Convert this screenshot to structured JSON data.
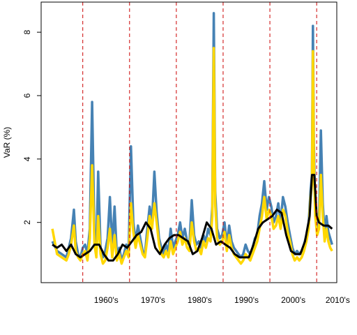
{
  "chart_data": {
    "type": "line",
    "ylabel": "VaR (%)",
    "xlabel": "",
    "title": "",
    "xlim": [
      1950.6,
      2013.8
    ],
    "ylim": [
      0.1,
      8.95
    ],
    "y_ticks": [
      2,
      4,
      6,
      8
    ],
    "y_tick_labels": [
      "2",
      "4",
      "6",
      "8"
    ],
    "decade_labels": [
      {
        "label": "1960's",
        "x": 1964.5
      },
      {
        "label": "1970's",
        "x": 1974.5
      },
      {
        "label": "1980's",
        "x": 1984.5
      },
      {
        "label": "1990's",
        "x": 1994.5
      },
      {
        "label": "2000's",
        "x": 2004.5
      },
      {
        "label": "2010's",
        "x": 2014.0
      }
    ],
    "vlines": [
      1959.5,
      1969.5,
      1979.5,
      1989.5,
      1999.5,
      2009.5
    ],
    "vline_color": "#cc0000",
    "grid": false,
    "series": [
      {
        "color": "#4682b4",
        "x": [
          1953.0,
          1954.0,
          1955.0,
          1956.0,
          1956.5,
          1957.0,
          1957.6,
          1958.0,
          1958.5,
          1959.0,
          1959.5,
          1960.0,
          1960.5,
          1961.0,
          1961.5,
          1962.0,
          1962.4,
          1962.8,
          1963.3,
          1963.8,
          1964.3,
          1964.8,
          1965.3,
          1965.8,
          1966.3,
          1966.8,
          1967.3,
          1967.8,
          1968.3,
          1968.8,
          1969.3,
          1969.8,
          1970.3,
          1970.8,
          1971.3,
          1971.8,
          1972.3,
          1972.8,
          1973.3,
          1973.8,
          1974.3,
          1974.8,
          1975.3,
          1975.8,
          1976.3,
          1976.8,
          1977.3,
          1977.8,
          1978.3,
          1978.8,
          1979.3,
          1979.8,
          1980.3,
          1980.8,
          1981.3,
          1981.8,
          1982.3,
          1982.8,
          1983.3,
          1983.8,
          1984.3,
          1984.8,
          1985.3,
          1985.8,
          1986.3,
          1986.8,
          1987.2,
          1987.5,
          1987.8,
          1988.2,
          1988.8,
          1989.3,
          1989.8,
          1990.3,
          1990.8,
          1991.3,
          1991.8,
          1992.3,
          1992.8,
          1993.3,
          1993.8,
          1994.3,
          1994.8,
          1995.3,
          1995.8,
          1996.3,
          1996.8,
          1997.3,
          1997.8,
          1998.3,
          1998.8,
          1999.3,
          1999.8,
          2000.3,
          2000.8,
          2001.3,
          2001.8,
          2002.3,
          2002.8,
          2003.3,
          2003.8,
          2004.3,
          2004.8,
          2005.3,
          2005.8,
          2006.3,
          2006.8,
          2007.3,
          2007.8,
          2008.2,
          2008.5,
          2008.7,
          2008.9,
          2009.2,
          2009.6,
          2010.0,
          2010.4,
          2010.8,
          2011.2,
          2011.6,
          2012.0,
          2012.4,
          2012.8
        ],
        "y": [
          1.4,
          1.1,
          1.0,
          0.9,
          1.2,
          1.5,
          2.4,
          1.4,
          1.0,
          0.9,
          1.2,
          1.3,
          1.0,
          1.8,
          5.8,
          1.6,
          1.1,
          3.6,
          1.2,
          0.9,
          1.1,
          1.5,
          2.8,
          1.2,
          2.5,
          0.9,
          1.2,
          0.8,
          1.0,
          1.3,
          1.1,
          4.4,
          2.0,
          1.4,
          1.9,
          1.5,
          1.1,
          1.0,
          1.8,
          2.5,
          2.0,
          3.6,
          2.3,
          1.5,
          1.2,
          1.0,
          1.3,
          1.1,
          1.8,
          1.2,
          1.4,
          1.6,
          2.0,
          1.5,
          1.8,
          1.4,
          1.3,
          2.7,
          1.6,
          1.3,
          1.4,
          1.2,
          1.6,
          1.4,
          1.8,
          1.6,
          2.5,
          8.6,
          3.0,
          1.8,
          1.5,
          1.6,
          2.0,
          1.3,
          1.9,
          1.4,
          1.2,
          1.1,
          1.0,
          0.9,
          1.0,
          1.3,
          1.1,
          1.0,
          1.2,
          1.5,
          1.6,
          2.2,
          2.6,
          3.3,
          2.4,
          2.8,
          2.5,
          2.0,
          2.2,
          2.6,
          2.0,
          2.8,
          2.5,
          2.0,
          1.6,
          1.2,
          1.0,
          1.1,
          1.0,
          1.1,
          1.3,
          1.6,
          2.0,
          3.0,
          3.5,
          8.2,
          4.5,
          2.5,
          1.8,
          2.0,
          4.9,
          2.6,
          1.6,
          2.2,
          1.7,
          1.5,
          1.3
        ]
      },
      {
        "color": "#ffd700",
        "x": [
          1953.0,
          1954.0,
          1955.0,
          1956.0,
          1956.5,
          1957.0,
          1957.6,
          1958.0,
          1958.5,
          1959.0,
          1959.5,
          1960.0,
          1960.5,
          1961.0,
          1961.5,
          1962.0,
          1962.4,
          1962.8,
          1963.3,
          1963.8,
          1964.3,
          1964.8,
          1965.3,
          1965.8,
          1966.3,
          1966.8,
          1967.3,
          1967.8,
          1968.3,
          1968.8,
          1969.3,
          1969.8,
          1970.3,
          1970.8,
          1971.3,
          1971.8,
          1972.3,
          1972.8,
          1973.3,
          1973.8,
          1974.3,
          1974.8,
          1975.3,
          1975.8,
          1976.3,
          1976.8,
          1977.3,
          1977.8,
          1978.3,
          1978.8,
          1979.3,
          1979.8,
          1980.3,
          1980.8,
          1981.3,
          1981.8,
          1982.3,
          1982.8,
          1983.3,
          1983.8,
          1984.3,
          1984.8,
          1985.3,
          1985.8,
          1986.3,
          1986.8,
          1987.2,
          1987.5,
          1987.8,
          1988.2,
          1988.8,
          1989.3,
          1989.8,
          1990.3,
          1990.8,
          1991.3,
          1991.8,
          1992.3,
          1992.8,
          1993.3,
          1993.8,
          1994.3,
          1994.8,
          1995.3,
          1995.8,
          1996.3,
          1996.8,
          1997.3,
          1997.8,
          1998.3,
          1998.8,
          1999.3,
          1999.8,
          2000.3,
          2000.8,
          2001.3,
          2001.8,
          2002.3,
          2002.8,
          2003.3,
          2003.8,
          2004.3,
          2004.8,
          2005.3,
          2005.8,
          2006.3,
          2006.8,
          2007.3,
          2007.8,
          2008.2,
          2008.5,
          2008.7,
          2008.9,
          2009.2,
          2009.6,
          2010.0,
          2010.4,
          2010.8,
          2011.2,
          2011.6,
          2012.0,
          2012.4,
          2012.8
        ],
        "y": [
          1.8,
          1.0,
          0.9,
          0.8,
          1.0,
          1.3,
          1.9,
          1.1,
          0.9,
          0.8,
          1.0,
          1.1,
          0.8,
          1.5,
          3.8,
          1.3,
          0.9,
          2.2,
          1.0,
          0.7,
          0.8,
          1.2,
          1.8,
          0.9,
          1.6,
          0.8,
          1.0,
          0.7,
          0.9,
          1.1,
          0.9,
          2.6,
          1.7,
          1.2,
          1.6,
          1.3,
          1.0,
          0.9,
          1.5,
          2.2,
          1.8,
          2.6,
          2.0,
          1.3,
          1.0,
          0.9,
          1.1,
          0.9,
          1.4,
          1.0,
          1.2,
          1.4,
          1.7,
          1.3,
          1.5,
          1.2,
          1.1,
          2.0,
          1.4,
          1.1,
          1.2,
          1.0,
          1.4,
          1.2,
          1.5,
          1.4,
          2.2,
          7.5,
          2.6,
          1.5,
          1.3,
          1.4,
          1.7,
          1.1,
          1.6,
          1.2,
          1.0,
          0.9,
          0.8,
          0.7,
          0.8,
          1.0,
          0.9,
          0.8,
          1.0,
          1.2,
          1.4,
          1.8,
          2.2,
          2.8,
          2.1,
          2.4,
          2.2,
          1.8,
          1.9,
          2.2,
          1.8,
          2.4,
          2.2,
          1.7,
          1.4,
          1.0,
          0.8,
          0.9,
          0.8,
          0.9,
          1.1,
          1.4,
          1.8,
          2.8,
          3.2,
          7.4,
          4.0,
          2.2,
          1.6,
          1.8,
          3.5,
          2.2,
          1.4,
          1.8,
          1.4,
          1.2,
          1.1
        ]
      },
      {
        "color": "#000000",
        "x": [
          1953.0,
          1954.0,
          1955.0,
          1956.0,
          1957.0,
          1958.0,
          1959.0,
          1960.0,
          1961.0,
          1962.0,
          1963.0,
          1964.0,
          1965.0,
          1966.0,
          1967.0,
          1968.0,
          1969.0,
          1970.0,
          1971.0,
          1972.0,
          1973.0,
          1974.0,
          1975.0,
          1976.0,
          1977.0,
          1978.0,
          1979.0,
          1980.0,
          1981.0,
          1982.0,
          1983.0,
          1984.0,
          1985.0,
          1986.0,
          1987.0,
          1988.0,
          1989.0,
          1990.0,
          1991.0,
          1992.0,
          1993.0,
          1994.0,
          1995.0,
          1996.0,
          1997.0,
          1998.0,
          1999.0,
          2000.0,
          2001.0,
          2002.0,
          2003.0,
          2004.0,
          2005.0,
          2006.0,
          2007.0,
          2008.0,
          2008.5,
          2009.0,
          2009.5,
          2010.0,
          2011.0,
          2012.0,
          2012.8
        ],
        "y": [
          1.3,
          1.2,
          1.3,
          1.1,
          1.3,
          1.0,
          0.9,
          1.0,
          1.1,
          1.3,
          1.3,
          1.0,
          0.8,
          0.8,
          1.0,
          1.3,
          1.2,
          1.4,
          1.6,
          1.7,
          2.0,
          1.8,
          1.2,
          1.0,
          1.3,
          1.5,
          1.6,
          1.6,
          1.5,
          1.4,
          1.0,
          1.1,
          1.5,
          2.0,
          1.8,
          1.3,
          1.4,
          1.3,
          1.2,
          1.0,
          0.9,
          0.9,
          0.9,
          1.3,
          1.8,
          2.0,
          2.1,
          2.2,
          2.4,
          2.3,
          1.6,
          1.1,
          1.0,
          1.0,
          1.4,
          2.2,
          3.5,
          3.5,
          2.2,
          2.0,
          1.9,
          1.9,
          1.8
        ]
      }
    ]
  }
}
